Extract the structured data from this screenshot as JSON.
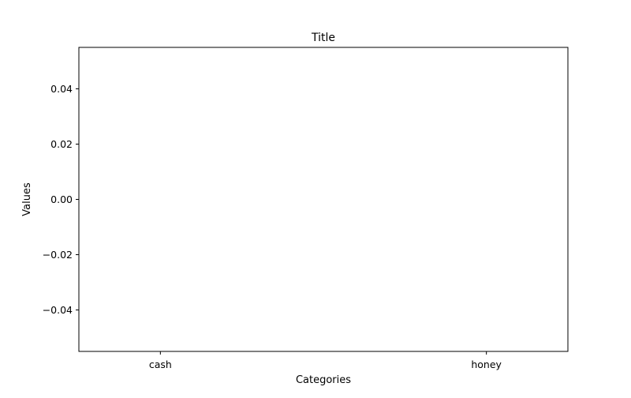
{
  "chart_data": {
    "type": "bar",
    "title": "Title",
    "xlabel": "Categories",
    "ylabel": "Values",
    "categories": [
      "cash",
      "honey"
    ],
    "values": [
      0,
      0
    ],
    "ylim": [
      -0.055,
      0.055
    ],
    "yticks": [
      -0.04,
      -0.02,
      0.0,
      0.02,
      0.04
    ],
    "ytick_labels": [
      "−0.04",
      "−0.02",
      "0.00",
      "0.02",
      "0.04"
    ],
    "grid": false,
    "legend": "none",
    "colors": {
      "axis": "#000000",
      "background": "#ffffff"
    }
  }
}
